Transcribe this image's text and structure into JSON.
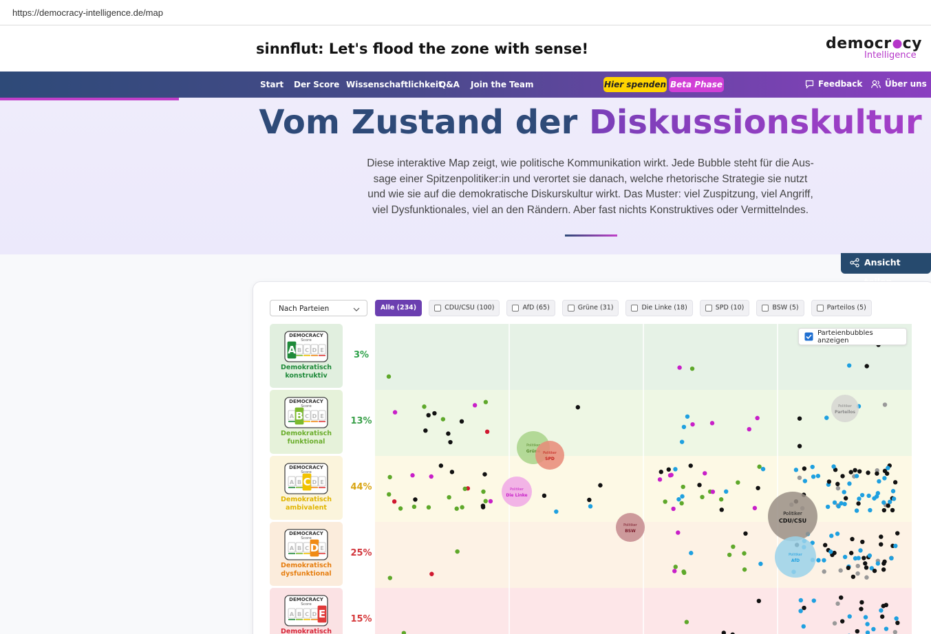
{
  "browser": {
    "url": "https://democracy-intelligence.de/map"
  },
  "header": {
    "title": "sinnflut: Let's flood the zone with sense!",
    "logo_part1": "democr",
    "logo_part2": "cy",
    "logo_sub": "Intelligence"
  },
  "nav": {
    "items": [
      "Start",
      "Der Score",
      "Wissenschaftlichkeit",
      "Q&A",
      "Join the Team"
    ],
    "donate": "Hier spenden",
    "beta": "Beta Phase",
    "feedback": "Feedback",
    "about": "Über uns"
  },
  "hero": {
    "title_start": "Vom Zustand der",
    "title_end": "Diskussionskultur",
    "lines": [
      "Diese interaktive Map zeigt, wie politische Kommunikation wirkt. Jede Bubble steht für die Aus-",
      "sage einer Spitzenpolitiker:in und verortet sie danach, welche rhetorische Strategie sie nutzt",
      "und wie sie auf die demokratische Diskurskultur wirkt. Das Muster: viel Zuspitzung, viel Angriff,",
      "viel Dysfunktionales, viel an den Rändern. Aber fast nichts Konstruktives oder Vermittelndes."
    ]
  },
  "share": "Ansicht teilen",
  "filter": {
    "dropdown": "Nach Parteien",
    "chips": [
      "Alle (234)",
      "CDU/CSU (100)",
      "AfD (65)",
      "Grüne (31)",
      "Die Linke (18)",
      "SPD (10)",
      "BSW (5)",
      "Parteilos (5)"
    ],
    "toggle": "Parteienbubbles anzeigen"
  },
  "badge": {
    "title": "DEMOCRACY",
    "sub": "Score",
    "letters": [
      "A",
      "B",
      "C",
      "D",
      "E"
    ]
  },
  "rows": [
    {
      "percent": "3%",
      "label": "Demokratisch konstruktiv"
    },
    {
      "percent": "13%",
      "label": "Demokratisch funktional"
    },
    {
      "percent": "44%",
      "label": "Demokratisch ambivalent"
    },
    {
      "percent": "25%",
      "label": "Demokratisch dysfunktional"
    },
    {
      "percent": "15%",
      "label": "Demokratisch"
    }
  ],
  "bubbles": [
    {
      "kicker": "Politiker",
      "name": "Grüne"
    },
    {
      "kicker": "Politiker",
      "name": "SPD"
    },
    {
      "kicker": "Politiker",
      "name": "Die Linke"
    },
    {
      "kicker": "Politiker",
      "name": "BSW"
    },
    {
      "kicker": "Politiker",
      "name": "Parteilos"
    },
    {
      "kicker": "Politiker",
      "name": "CDU/CSU"
    },
    {
      "kicker": "Politiker",
      "name": "AfD"
    }
  ]
}
